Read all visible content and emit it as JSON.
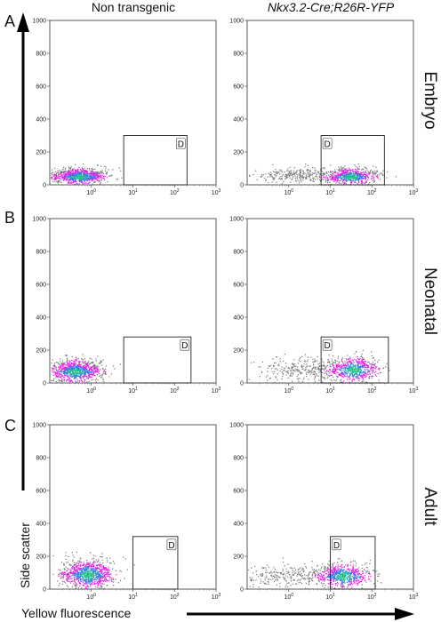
{
  "figure": {
    "col_headers": [
      "Non transgenic",
      "Nkx3.2-Cre;R26R-YFP"
    ],
    "row_letters": [
      "A",
      "B",
      "C"
    ],
    "row_labels": [
      "Embryo",
      "Neonatal",
      "Adult"
    ],
    "y_axis_label": "Side scatter",
    "x_axis_label": "Yellow fluorescence",
    "gate_label": "D",
    "colors": {
      "frame": "#333333",
      "dots_grey": "#777777",
      "dots_magenta": "#e020e0",
      "dots_blue": "#3a7be0",
      "dots_green": "#22c08a"
    }
  },
  "chart_data": [
    {
      "type": "scatter",
      "row": "Embryo",
      "column": "Non transgenic",
      "xscale": "log",
      "xticks": [
        "10^0",
        "10^1",
        "10^2",
        "10^3"
      ],
      "yticks": [
        "0",
        "200",
        "400",
        "600",
        "800",
        "1000"
      ],
      "ylim": [
        0,
        1000
      ],
      "gate": {
        "x": [
          6,
          200
        ],
        "y": [
          0,
          300
        ],
        "label": "D"
      },
      "population": {
        "x_center": 0.5,
        "y_center": 50
      }
    },
    {
      "type": "scatter",
      "row": "Embryo",
      "column": "Nkx3.2-Cre;R26R-YFP",
      "xscale": "log",
      "xticks": [
        "10^0",
        "10^1",
        "10^2",
        "10^3"
      ],
      "yticks": [
        "0",
        "200",
        "400",
        "600",
        "800",
        "1000"
      ],
      "ylim": [
        0,
        1000
      ],
      "gate": {
        "x": [
          6,
          200
        ],
        "y": [
          0,
          300
        ],
        "label": "D"
      },
      "population": {
        "x_center": 30,
        "y_center": 50
      }
    },
    {
      "type": "scatter",
      "row": "Neonatal",
      "column": "Non transgenic",
      "xscale": "log",
      "xticks": [
        "10^0",
        "10^1",
        "10^2",
        "10^3"
      ],
      "yticks": [
        "0",
        "200",
        "400",
        "600",
        "800",
        "1000"
      ],
      "ylim": [
        0,
        1000
      ],
      "gate": {
        "x": [
          6,
          250
        ],
        "y": [
          0,
          280
        ],
        "label": "D"
      },
      "population": {
        "x_center": 0.4,
        "y_center": 70
      }
    },
    {
      "type": "scatter",
      "row": "Neonatal",
      "column": "Nkx3.2-Cre;R26R-YFP",
      "xscale": "log",
      "xticks": [
        "10^0",
        "10^1",
        "10^2",
        "10^3"
      ],
      "yticks": [
        "0",
        "200",
        "400",
        "600",
        "800",
        "1000"
      ],
      "ylim": [
        0,
        1000
      ],
      "gate": {
        "x": [
          6,
          250
        ],
        "y": [
          0,
          280
        ],
        "label": "D"
      },
      "population": {
        "x_center": 35,
        "y_center": 80
      }
    },
    {
      "type": "scatter",
      "row": "Adult",
      "column": "Non transgenic",
      "xscale": "log",
      "xticks": [
        "10^0",
        "10^1",
        "10^2",
        "10^3"
      ],
      "yticks": [
        "0",
        "200",
        "400",
        "600",
        "800",
        "1000"
      ],
      "ylim": [
        0,
        1000
      ],
      "gate": {
        "x": [
          10,
          120
        ],
        "y": [
          0,
          320
        ],
        "label": "D"
      },
      "population": {
        "x_center": 0.8,
        "y_center": 90
      }
    },
    {
      "type": "scatter",
      "row": "Adult",
      "column": "Nkx3.2-Cre;R26R-YFP",
      "xscale": "log",
      "xticks": [
        "10^0",
        "10^1",
        "10^2",
        "10^3"
      ],
      "yticks": [
        "0",
        "200",
        "400",
        "600",
        "800",
        "1000"
      ],
      "ylim": [
        0,
        1000
      ],
      "gate": {
        "x": [
          10,
          120
        ],
        "y": [
          0,
          320
        ],
        "label": "D"
      },
      "population": {
        "x_center": 20,
        "y_center": 80
      }
    }
  ]
}
